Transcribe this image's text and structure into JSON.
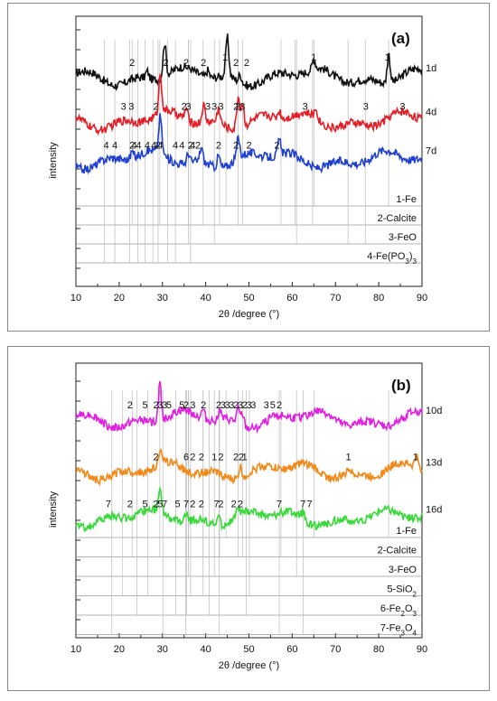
{
  "chart_data": [
    {
      "type": "line",
      "panel_label": "(a)",
      "xlabel": "2θ /degree (°)",
      "ylabel": "intensity",
      "xlim": [
        10,
        90
      ],
      "xticks": [
        10,
        20,
        30,
        40,
        50,
        60,
        70,
        80,
        90
      ],
      "series": [
        {
          "name": "1d",
          "color": "#111111",
          "baseline": 8.6,
          "peaks": [
            [
              30.5,
              1.4
            ],
            [
              45.0,
              1.6
            ],
            [
              65.0,
              0.4
            ],
            [
              82.3,
              1.2
            ],
            [
              26.5,
              0.3
            ],
            [
              40.5,
              0.3
            ],
            [
              48.0,
              0.3
            ]
          ],
          "peak_labels": [
            {
              "x": 23.0,
              "t": "2"
            },
            {
              "x": 30.8,
              "t": "2"
            },
            {
              "x": 35.5,
              "t": "2"
            },
            {
              "x": 39.5,
              "t": "2"
            },
            {
              "x": 44.5,
              "t": "1"
            },
            {
              "x": 47.0,
              "t": "2"
            },
            {
              "x": 49.5,
              "t": "2"
            },
            {
              "x": 65.0,
              "t": "1"
            },
            {
              "x": 82.0,
              "t": "1"
            }
          ]
        },
        {
          "name": "4d",
          "color": "#e41e26",
          "baseline": 6.8,
          "peaks": [
            [
              29.5,
              1.6
            ],
            [
              39.5,
              0.7
            ],
            [
              43.0,
              0.6
            ],
            [
              47.5,
              1.3
            ],
            [
              48.5,
              1.0
            ],
            [
              57.0,
              0.3
            ],
            [
              65.5,
              0.4
            ],
            [
              35.5,
              0.5
            ]
          ],
          "peak_labels": [
            {
              "x": 21.0,
              "t": "3"
            },
            {
              "x": 22.8,
              "t": "3"
            },
            {
              "x": 28.5,
              "t": "2"
            },
            {
              "x": 35.0,
              "t": "2"
            },
            {
              "x": 36.0,
              "t": "3"
            },
            {
              "x": 40.5,
              "t": "3"
            },
            {
              "x": 42.0,
              "t": "3"
            },
            {
              "x": 43.5,
              "t": "3"
            },
            {
              "x": 47.5,
              "t": "2"
            },
            {
              "x": 47.0,
              "t": "2"
            },
            {
              "x": 48.5,
              "t": "3"
            },
            {
              "x": 63.0,
              "t": "3"
            },
            {
              "x": 77.0,
              "t": "3"
            },
            {
              "x": 85.5,
              "t": "3"
            }
          ]
        },
        {
          "name": "7d",
          "color": "#1f3fd1",
          "baseline": 5.2,
          "peaks": [
            [
              29.5,
              1.5
            ],
            [
              39.0,
              0.6
            ],
            [
              43.0,
              0.5
            ],
            [
              47.5,
              0.8
            ],
            [
              57.0,
              0.6
            ],
            [
              23.0,
              0.3
            ],
            [
              36.0,
              0.4
            ]
          ],
          "peak_labels": [
            {
              "x": 17.0,
              "t": "4"
            },
            {
              "x": 19.0,
              "t": "4"
            },
            {
              "x": 23.5,
              "t": "4"
            },
            {
              "x": 23.0,
              "t": "2"
            },
            {
              "x": 24.5,
              "t": "4"
            },
            {
              "x": 26.5,
              "t": "4"
            },
            {
              "x": 28.0,
              "t": "4"
            },
            {
              "x": 29.5,
              "t": "4"
            },
            {
              "x": 29.0,
              "t": "2"
            },
            {
              "x": 33.0,
              "t": "4"
            },
            {
              "x": 34.5,
              "t": "4"
            },
            {
              "x": 36.5,
              "t": "2"
            },
            {
              "x": 37.0,
              "t": "4"
            },
            {
              "x": 38.2,
              "t": "2"
            },
            {
              "x": 43.0,
              "t": "2"
            },
            {
              "x": 47.0,
              "t": "2"
            },
            {
              "x": 50.0,
              "t": "2"
            },
            {
              "x": 56.5,
              "t": "2"
            }
          ]
        }
      ],
      "reference_phases": [
        {
          "label": "1-Fe",
          "lines": [
            44.7,
            65.0,
            82.3
          ]
        },
        {
          "label": "2-Calcite",
          "lines": [
            23.0,
            29.4,
            36.0,
            39.4,
            43.2,
            47.5,
            48.5,
            57.4,
            60.7,
            64.7
          ]
        },
        {
          "label": "3-FeO",
          "lines": [
            36.0,
            42.0,
            61.0,
            72.9,
            76.9
          ]
        },
        {
          "label": "4-Fe(PO3)3",
          "label_main": "4-Fe(PO",
          "label_sub": "3",
          "label_tail": ")",
          "label_sub2": "3",
          "lines": [
            16.6,
            19.0,
            22.4,
            24.3,
            26.0,
            27.8,
            29.0,
            31.2,
            33.0,
            36.5
          ]
        }
      ]
    },
    {
      "type": "line",
      "panel_label": "(b)",
      "xlabel": "2θ /degree (°)",
      "ylabel": "intensity",
      "xlim": [
        10,
        90
      ],
      "xticks": [
        10,
        20,
        30,
        40,
        50,
        60,
        70,
        80,
        90
      ],
      "series": [
        {
          "name": "10d",
          "color": "#e020e0",
          "baseline": 9.3,
          "peaks": [
            [
              29.4,
              1.6
            ],
            [
              39.4,
              0.4
            ],
            [
              43.2,
              0.4
            ],
            [
              47.5,
              0.6
            ],
            [
              48.5,
              0.5
            ]
          ],
          "peak_labels": [
            {
              "x": 22.5,
              "t": "2"
            },
            {
              "x": 26.0,
              "t": "5"
            },
            {
              "x": 28.5,
              "t": "2"
            },
            {
              "x": 29.5,
              "t": "3"
            },
            {
              "x": 30.5,
              "t": "3"
            },
            {
              "x": 31.5,
              "t": "5"
            },
            {
              "x": 34.5,
              "t": "5"
            },
            {
              "x": 35.5,
              "t": "2"
            },
            {
              "x": 37.0,
              "t": "3"
            },
            {
              "x": 39.5,
              "t": "2"
            },
            {
              "x": 43.0,
              "t": "2"
            },
            {
              "x": 44.0,
              "t": "3"
            },
            {
              "x": 45.0,
              "t": "3"
            },
            {
              "x": 46.0,
              "t": "3"
            },
            {
              "x": 47.0,
              "t": "2"
            },
            {
              "x": 48.0,
              "t": "3"
            },
            {
              "x": 49.0,
              "t": "2"
            },
            {
              "x": 50.0,
              "t": "3"
            },
            {
              "x": 51.0,
              "t": "3"
            },
            {
              "x": 54.0,
              "t": "3"
            },
            {
              "x": 55.5,
              "t": "5"
            },
            {
              "x": 57.0,
              "t": "2"
            }
          ]
        },
        {
          "name": "13d",
          "color": "#f08a1a",
          "baseline": 7.1,
          "peaks": [
            [
              29.4,
              0.6
            ],
            [
              48.0,
              0.5
            ],
            [
              73.0,
              0.3
            ],
            [
              88.7,
              0.5
            ]
          ],
          "peak_labels": [
            {
              "x": 28.5,
              "t": "2"
            },
            {
              "x": 35.5,
              "t": "6"
            },
            {
              "x": 37.0,
              "t": "2"
            },
            {
              "x": 39.0,
              "t": "2"
            },
            {
              "x": 42.0,
              "t": "1"
            },
            {
              "x": 43.5,
              "t": "2"
            },
            {
              "x": 47.0,
              "t": "2"
            },
            {
              "x": 48.2,
              "t": "2"
            },
            {
              "x": 49.0,
              "t": "1"
            },
            {
              "x": 73.0,
              "t": "1"
            },
            {
              "x": 88.5,
              "t": "1"
            }
          ]
        },
        {
          "name": "16d",
          "color": "#3bd83b",
          "baseline": 5.1,
          "peaks": [
            [
              29.4,
              0.9
            ],
            [
              35.5,
              0.3
            ],
            [
              43.0,
              0.4
            ],
            [
              47.5,
              0.4
            ],
            [
              62.5,
              0.3
            ]
          ],
          "peak_labels": [
            {
              "x": 17.5,
              "t": "7"
            },
            {
              "x": 22.5,
              "t": "2"
            },
            {
              "x": 26.0,
              "t": "5"
            },
            {
              "x": 28.5,
              "t": "2"
            },
            {
              "x": 29.5,
              "t": "5"
            },
            {
              "x": 30.5,
              "t": "7"
            },
            {
              "x": 33.5,
              "t": "5"
            },
            {
              "x": 35.5,
              "t": "7"
            },
            {
              "x": 37.0,
              "t": "2"
            },
            {
              "x": 39.0,
              "t": "2"
            },
            {
              "x": 42.5,
              "t": "7"
            },
            {
              "x": 43.5,
              "t": "2"
            },
            {
              "x": 46.5,
              "t": "2"
            },
            {
              "x": 48.0,
              "t": "2"
            },
            {
              "x": 57.0,
              "t": "7"
            },
            {
              "x": 62.5,
              "t": "7"
            },
            {
              "x": 64.0,
              "t": "7"
            }
          ]
        }
      ],
      "reference_phases": [
        {
          "label": "1-Fe",
          "lines": [
            44.7,
            65.0,
            82.3
          ]
        },
        {
          "label": "2-Calcite",
          "lines": [
            23.0,
            29.4,
            36.0,
            39.4,
            43.2,
            47.5,
            48.5,
            57.4
          ]
        },
        {
          "label": "3-FeO",
          "lines": [
            36.0,
            42.0,
            61.0
          ]
        },
        {
          "label": "5-SiO2",
          "label_main": "5-SiO",
          "label_sub": "2",
          "lines": [
            20.8,
            26.6,
            36.5,
            39.4,
            50.1
          ]
        },
        {
          "label": "6-Fe2O3",
          "label_main": "6-Fe",
          "label_sub": "2",
          "label_tail": "O",
          "label_sub2": "3",
          "lines": [
            24.1,
            33.1,
            35.6,
            40.8,
            49.4
          ]
        },
        {
          "label": "7-Fe3O4",
          "label_main": "7-Fe",
          "label_sub": "3",
          "label_tail": "O",
          "label_sub2": "4",
          "lines": [
            18.3,
            30.1,
            35.4,
            43.1,
            57.0,
            62.5
          ]
        }
      ]
    }
  ]
}
